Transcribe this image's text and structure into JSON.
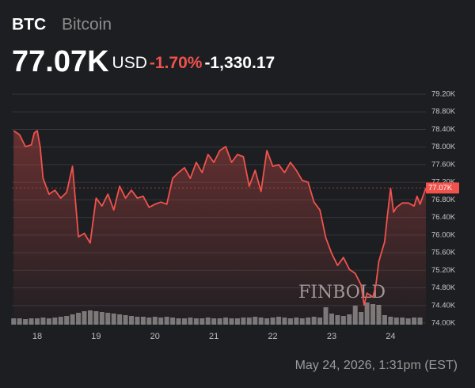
{
  "header": {
    "symbol": "BTC",
    "name": "Bitcoin",
    "price": "77.07K",
    "currency": "USD",
    "change_pct": "-1.70%",
    "change_abs": "-1,330.17"
  },
  "chart_data": {
    "type": "line",
    "color": "#f0524c",
    "x": [
      17.6,
      17.7,
      17.8,
      17.9,
      17.95,
      18.0,
      18.05,
      18.1,
      18.2,
      18.3,
      18.4,
      18.5,
      18.6,
      18.7,
      18.8,
      18.9,
      19.0,
      19.1,
      19.2,
      19.3,
      19.4,
      19.5,
      19.6,
      19.7,
      19.8,
      19.9,
      20.0,
      20.1,
      20.2,
      20.3,
      20.4,
      20.5,
      20.6,
      20.7,
      20.8,
      20.9,
      21.0,
      21.1,
      21.2,
      21.3,
      21.4,
      21.5,
      21.6,
      21.7,
      21.8,
      21.9,
      22.0,
      22.1,
      22.2,
      22.3,
      22.4,
      22.5,
      22.6,
      22.7,
      22.8,
      22.9,
      23.0,
      23.1,
      23.2,
      23.3,
      23.4,
      23.5,
      23.55,
      23.6,
      23.7,
      23.75,
      23.8,
      23.9,
      23.95,
      24.0,
      24.05,
      24.1,
      24.2,
      24.3,
      24.4,
      24.45,
      24.5,
      24.6
    ],
    "values": [
      78.37,
      78.28,
      78.01,
      78.05,
      78.32,
      78.37,
      78.01,
      77.29,
      76.93,
      77.02,
      76.84,
      76.97,
      77.56,
      75.96,
      76.04,
      75.82,
      76.84,
      76.66,
      76.93,
      76.57,
      77.11,
      76.84,
      77.02,
      76.84,
      76.88,
      76.63,
      76.7,
      76.75,
      76.7,
      77.29,
      77.42,
      77.53,
      77.29,
      77.65,
      77.42,
      77.83,
      77.65,
      77.92,
      78.01,
      77.65,
      77.83,
      77.78,
      77.11,
      77.47,
      76.99,
      77.92,
      77.56,
      77.6,
      77.42,
      77.65,
      77.47,
      77.24,
      77.2,
      76.75,
      76.57,
      75.94,
      75.58,
      75.31,
      75.49,
      75.22,
      75.13,
      74.86,
      74.41,
      74.68,
      74.59,
      74.86,
      75.4,
      75.85,
      76.48,
      77.06,
      76.52,
      76.63,
      76.73,
      76.73,
      76.66,
      76.88,
      76.7,
      77.07
    ],
    "volume": {
      "color": "#8a8a8a",
      "x": [
        17.6,
        17.7,
        17.8,
        17.9,
        18.0,
        18.1,
        18.2,
        18.3,
        18.4,
        18.5,
        18.6,
        18.7,
        18.8,
        18.9,
        19.0,
        19.1,
        19.2,
        19.3,
        19.4,
        19.5,
        19.6,
        19.7,
        19.8,
        19.9,
        20.0,
        20.1,
        20.2,
        20.3,
        20.4,
        20.5,
        20.6,
        20.7,
        20.8,
        20.9,
        21.0,
        21.1,
        21.2,
        21.3,
        21.4,
        21.5,
        21.6,
        21.7,
        21.8,
        21.9,
        22.0,
        22.1,
        22.2,
        22.3,
        22.4,
        22.5,
        22.6,
        22.7,
        22.8,
        22.9,
        23.0,
        23.1,
        23.2,
        23.3,
        23.4,
        23.5,
        23.6,
        23.7,
        23.8,
        23.9,
        24.0,
        24.1,
        24.2,
        24.3,
        24.4,
        24.5
      ],
      "values": [
        8,
        8,
        7,
        8,
        8,
        9,
        8,
        9,
        10,
        11,
        13,
        15,
        17,
        18,
        17,
        16,
        15,
        14,
        13,
        12,
        11,
        10,
        10,
        9,
        10,
        9,
        10,
        9,
        8,
        8,
        9,
        8,
        8,
        9,
        8,
        8,
        9,
        8,
        8,
        9,
        9,
        10,
        9,
        8,
        9,
        10,
        9,
        8,
        9,
        8,
        9,
        10,
        9,
        22,
        14,
        12,
        11,
        13,
        24,
        16,
        28,
        26,
        25,
        12,
        10,
        9,
        9,
        8,
        9,
        9
      ]
    },
    "current": {
      "value": 77.07,
      "label": "77.07K"
    },
    "xlim": [
      17.57,
      24.6
    ],
    "xticks": [
      18,
      19,
      20,
      21,
      22,
      23,
      24
    ],
    "ylim": [
      74.0,
      79.2
    ],
    "yticks": [
      {
        "value": 74.0,
        "label": "74.00K"
      },
      {
        "value": 74.4,
        "label": "74.40K"
      },
      {
        "value": 74.8,
        "label": "74.80K"
      },
      {
        "value": 75.2,
        "label": "75.20K"
      },
      {
        "value": 75.6,
        "label": "75.60K"
      },
      {
        "value": 76.0,
        "label": "76.00K"
      },
      {
        "value": 76.4,
        "label": "76.40K"
      },
      {
        "value": 76.8,
        "label": "76.80K"
      },
      {
        "value": 77.2,
        "label": "77.20K"
      },
      {
        "value": 77.6,
        "label": "77.60K"
      },
      {
        "value": 78.0,
        "label": "78.00K"
      },
      {
        "value": 78.4,
        "label": "78.40K"
      },
      {
        "value": 78.8,
        "label": "78.80K"
      },
      {
        "value": 79.2,
        "label": "79.20K"
      }
    ],
    "grid": true,
    "watermark": "FINBOLD"
  },
  "footer": {
    "timestamp": "May 24, 2026, 1:31pm (EST)"
  }
}
